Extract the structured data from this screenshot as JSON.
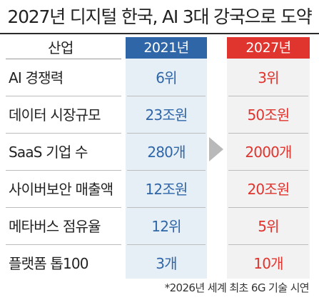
{
  "title": "2027년 디지털 한국, AI 3대 강국으로 도약",
  "chart_data": {
    "type": "table",
    "columns": [
      "산업",
      "2021년",
      "2027년"
    ],
    "rows": [
      {
        "label": "AI 경쟁력",
        "y2021": "6위",
        "y2027": "3위"
      },
      {
        "label": "데이터 시장규모",
        "y2021": "23조원",
        "y2027": "50조원"
      },
      {
        "label": "SaaS 기업 수",
        "y2021": "280개",
        "y2027": "2000개"
      },
      {
        "label": "사이버보안 매출액",
        "y2021": "12조원",
        "y2027": "20조원"
      },
      {
        "label": "메타버스 점유율",
        "y2021": "12위",
        "y2027": "5위"
      },
      {
        "label": "플랫폼 톱100",
        "y2021": "3개",
        "y2027": "10개"
      }
    ]
  },
  "footnote": "*2026년 세계 최초 6G 기술 시연",
  "colors": {
    "year_2021_accent": "#2f66a8",
    "year_2027_accent": "#e0342e",
    "arrow": "#b9b9b9"
  },
  "icons": {
    "arrow": "triangle-right-icon"
  }
}
